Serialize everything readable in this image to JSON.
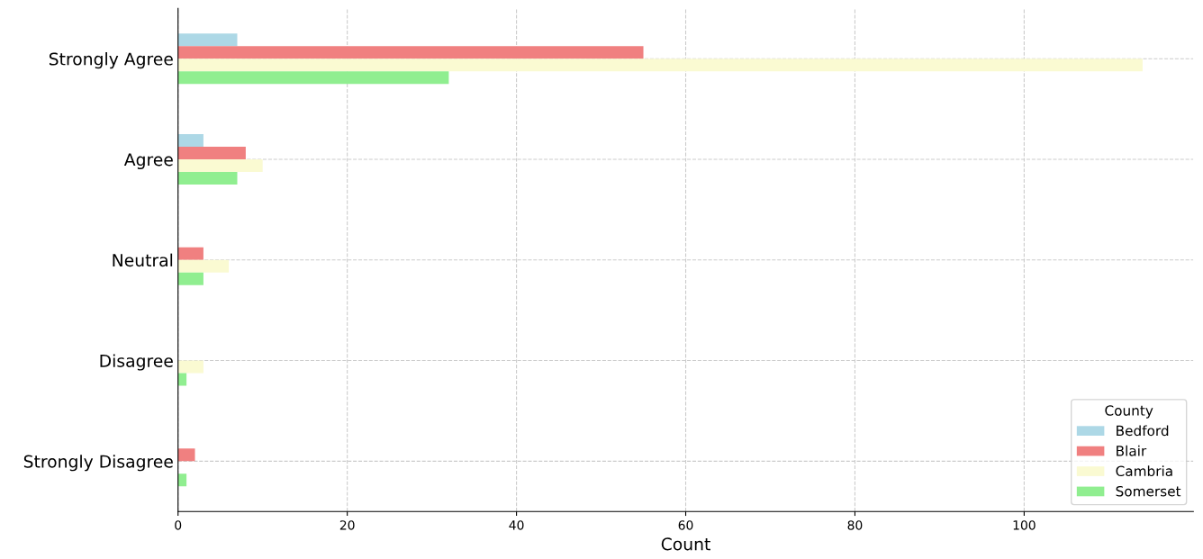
{
  "chart_data": {
    "type": "bar",
    "orientation": "horizontal",
    "xlabel": "Count",
    "legend_title": "County",
    "categories": [
      "Strongly Agree",
      "Agree",
      "Neutral",
      "Disagree",
      "Strongly Disagree"
    ],
    "series": [
      {
        "name": "Bedford",
        "color": "#add8e6",
        "values": [
          7,
          3,
          0,
          0,
          0
        ]
      },
      {
        "name": "Blair",
        "color": "#f08080",
        "values": [
          55,
          8,
          3,
          0,
          2
        ]
      },
      {
        "name": "Cambria",
        "color": "#fafad2",
        "values": [
          114,
          10,
          6,
          3,
          0
        ]
      },
      {
        "name": "Somerset",
        "color": "#90ee90",
        "values": [
          32,
          7,
          3,
          1,
          1
        ]
      }
    ],
    "xlim": [
      0,
      120
    ],
    "xticks": [
      0,
      20,
      40,
      60,
      80,
      100
    ],
    "grid": true,
    "line_style": "dashed",
    "legend": "bottom right"
  }
}
